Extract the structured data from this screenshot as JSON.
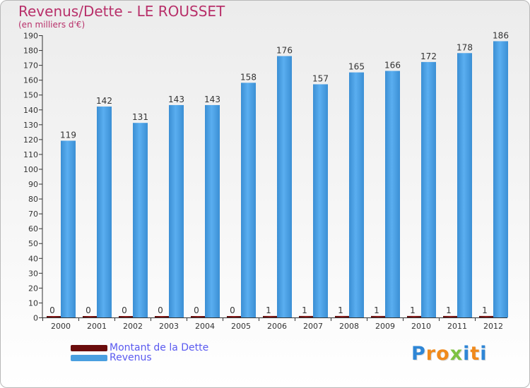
{
  "chart_data": {
    "type": "bar",
    "title": "Revenus/Dette - LE ROUSSET",
    "subtitle": "(en milliers d'€)",
    "categories": [
      "2000",
      "2001",
      "2002",
      "2003",
      "2004",
      "2005",
      "2006",
      "2007",
      "2008",
      "2009",
      "2010",
      "2011",
      "2012"
    ],
    "series": [
      {
        "name": "Montant de la Dette",
        "color": "#6b0d0d",
        "values": [
          0,
          0,
          0,
          0,
          0,
          0,
          1,
          1,
          1,
          1,
          1,
          1,
          1
        ]
      },
      {
        "name": "Revenus",
        "color": "#4a9fe0",
        "values": [
          119,
          142,
          131,
          143,
          143,
          158,
          176,
          157,
          165,
          166,
          172,
          178,
          186
        ]
      }
    ],
    "ylim": [
      0,
      190
    ],
    "ystep": 10,
    "grid": false,
    "legend_position": "bottom-left"
  },
  "legend": {
    "items": [
      {
        "label": "Montant de la Dette",
        "color": "#6b0d0d"
      },
      {
        "label": "Revenus",
        "color": "#4a9fe0"
      }
    ]
  },
  "logo": {
    "letters": [
      {
        "ch": "P",
        "color": "#2e86d6"
      },
      {
        "ch": "r",
        "color": "#f08a1c"
      },
      {
        "ch": "o",
        "color": "#f08a1c"
      },
      {
        "ch": "x",
        "color": "#7ec242"
      },
      {
        "ch": "i",
        "color": "#2e86d6"
      },
      {
        "ch": "t",
        "color": "#f08a1c"
      },
      {
        "ch": "i",
        "color": "#2e86d6"
      }
    ]
  }
}
